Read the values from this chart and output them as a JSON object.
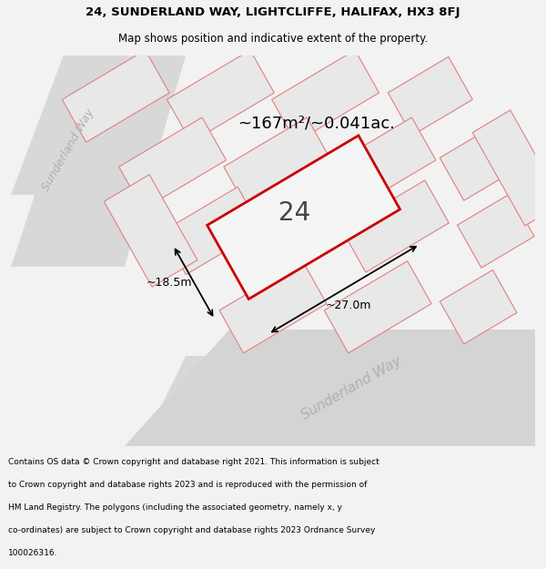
{
  "title_line1": "24, SUNDERLAND WAY, LIGHTCLIFFE, HALIFAX, HX3 8FJ",
  "title_line2": "Map shows position and indicative extent of the property.",
  "area_label": "~167m²/~0.041ac.",
  "plot_number": "24",
  "dim_width": "~27.0m",
  "dim_height": "~18.5m",
  "street_label": "Sunderland Way",
  "bg_color": "#f2f2f2",
  "map_bg": "#ffffff",
  "road_bg": "#e0e0e0",
  "bldg_fill": "#e8e8e8",
  "bldg_edge": "#e08080",
  "prop_fill": "#f5f5f5",
  "prop_edge": "#cc0000",
  "footer_lines": [
    "Contains OS data © Crown copyright and database right 2021. This information is subject",
    "to Crown copyright and database rights 2023 and is reproduced with the permission of",
    "HM Land Registry. The polygons (including the associated geometry, namely x, y",
    "co-ordinates) are subject to Crown copyright and database rights 2023 Ordnance Survey",
    "100026316."
  ]
}
